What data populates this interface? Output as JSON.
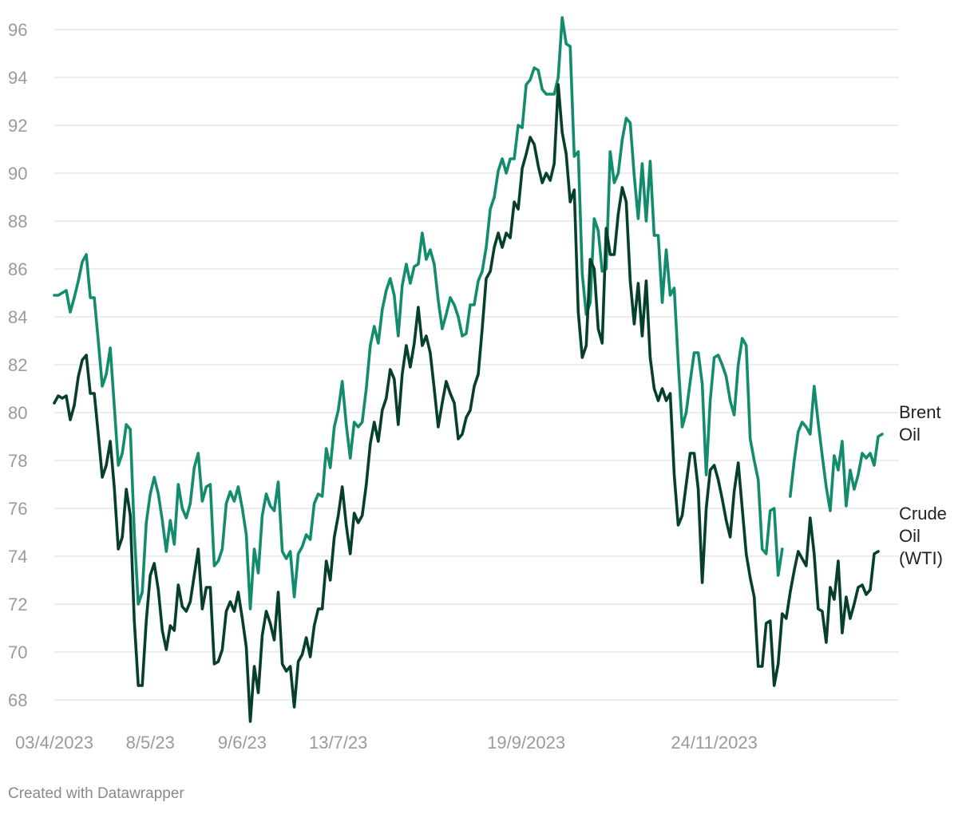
{
  "chart_data": {
    "type": "line",
    "ylim": [
      67,
      96.5
    ],
    "y_ticks": [
      "96",
      "94",
      "92",
      "90",
      "88",
      "86",
      "84",
      "82",
      "80",
      "78",
      "76",
      "74",
      "72",
      "70",
      "68"
    ],
    "x_ticks": [
      {
        "label": "03/4/2023",
        "index": 0
      },
      {
        "label": "8/5/23",
        "index": 24
      },
      {
        "label": "9/6/23",
        "index": 47
      },
      {
        "label": "13/7/23",
        "index": 71
      },
      {
        "label": "19/9/2023",
        "index": 118
      },
      {
        "label": "24/11/2023",
        "index": 165
      }
    ],
    "grid": true,
    "series": [
      {
        "name": "Brent Oil",
        "label_lines": [
          "Brent",
          "Oil"
        ],
        "color": "#138c6e",
        "values": [
          84.9,
          84.9,
          85.0,
          85.1,
          84.2,
          84.8,
          85.5,
          86.3,
          86.6,
          84.8,
          84.8,
          83.0,
          81.1,
          81.6,
          82.7,
          80.3,
          77.8,
          78.3,
          79.5,
          79.3,
          75.0,
          72.0,
          72.5,
          75.4,
          76.6,
          77.3,
          76.6,
          75.5,
          74.2,
          75.5,
          74.5,
          77.0,
          76.0,
          75.6,
          76.2,
          77.7,
          78.3,
          76.3,
          76.9,
          77.0,
          73.6,
          73.8,
          74.3,
          76.2,
          76.7,
          76.3,
          76.9,
          76.0,
          74.9,
          71.8,
          74.3,
          73.3,
          75.7,
          76.6,
          76.1,
          75.9,
          77.1,
          74.2,
          73.9,
          74.2,
          72.3,
          74.1,
          74.4,
          74.9,
          74.7,
          76.2,
          76.6,
          76.5,
          78.5,
          77.7,
          79.4,
          80.1,
          81.3,
          79.5,
          78.1,
          79.6,
          79.4,
          79.6,
          81.0,
          82.8,
          83.6,
          82.9,
          84.3,
          85.1,
          85.6,
          84.9,
          83.2,
          85.3,
          86.2,
          85.4,
          86.1,
          86.2,
          87.5,
          86.4,
          86.8,
          86.2,
          84.7,
          83.5,
          84.1,
          84.8,
          84.5,
          84.0,
          83.2,
          83.3,
          84.5,
          84.5,
          85.5,
          85.9,
          86.9,
          88.5,
          89.0,
          90.1,
          90.6,
          90.0,
          90.6,
          90.6,
          92.0,
          91.9,
          93.7,
          93.9,
          94.4,
          94.3,
          93.5,
          93.3,
          93.3,
          93.3,
          94.0,
          96.5,
          95.4,
          95.3,
          90.7,
          90.9,
          85.8,
          84.1,
          84.6,
          88.1,
          87.6,
          85.9,
          86.0,
          90.9,
          89.6,
          90.0,
          91.4,
          92.3,
          92.1,
          89.9,
          88.1,
          90.4,
          88.0,
          90.5,
          87.4,
          87.4,
          84.6,
          86.8,
          84.9,
          85.2,
          82.1,
          79.4,
          80.0,
          81.3,
          82.5,
          82.5,
          81.2,
          77.4,
          80.5,
          82.3,
          82.4,
          82.0,
          81.5,
          80.5,
          79.9,
          82.0,
          83.1,
          82.8,
          78.9,
          78.0,
          77.2,
          74.3,
          74.1,
          75.9,
          76.0,
          73.2,
          74.3,
          null,
          76.5,
          78.0,
          79.2,
          79.6,
          79.4,
          79.1,
          81.1,
          79.6,
          78.2,
          76.9,
          75.9,
          78.2,
          77.6,
          78.8,
          76.1,
          77.6,
          76.8,
          77.4,
          78.3,
          78.1,
          78.3,
          77.8,
          79.0,
          79.1
        ]
      },
      {
        "name": "Crude Oil (WTI)",
        "label_lines": [
          "Crude",
          "Oil",
          "(WTI)"
        ],
        "color": "#063f2a",
        "values": [
          80.4,
          80.7,
          80.6,
          80.7,
          79.7,
          80.3,
          81.5,
          82.2,
          82.4,
          80.8,
          80.8,
          79.1,
          77.3,
          77.8,
          78.8,
          76.9,
          74.3,
          74.8,
          76.8,
          75.7,
          71.3,
          68.6,
          68.6,
          71.3,
          73.2,
          73.7,
          72.6,
          70.9,
          70.1,
          71.1,
          70.9,
          72.8,
          71.9,
          71.7,
          72.1,
          73.2,
          74.3,
          71.8,
          72.7,
          72.7,
          69.5,
          69.6,
          70.1,
          71.7,
          72.1,
          71.7,
          72.5,
          71.4,
          70.2,
          67.1,
          69.4,
          68.3,
          70.7,
          71.7,
          71.2,
          70.5,
          72.5,
          69.5,
          69.2,
          69.4,
          67.7,
          69.6,
          69.9,
          70.6,
          69.8,
          71.1,
          71.8,
          71.8,
          73.8,
          73.0,
          74.8,
          75.7,
          76.9,
          75.3,
          74.1,
          75.8,
          75.4,
          75.7,
          77.0,
          78.7,
          79.6,
          78.8,
          80.1,
          80.6,
          81.8,
          81.4,
          79.5,
          81.6,
          82.8,
          81.9,
          82.9,
          84.4,
          82.8,
          83.2,
          82.5,
          81.0,
          79.4,
          80.4,
          81.3,
          80.8,
          80.4,
          78.9,
          79.1,
          79.8,
          80.1,
          81.1,
          81.6,
          83.5,
          85.6,
          85.9,
          86.9,
          87.5,
          86.9,
          87.5,
          87.3,
          88.8,
          88.5,
          90.2,
          90.8,
          91.5,
          91.2,
          90.3,
          89.6,
          90.0,
          89.7,
          90.4,
          93.7,
          91.7,
          90.8,
          88.8,
          89.3,
          84.2,
          82.3,
          82.8,
          86.4,
          86.0,
          83.5,
          82.9,
          87.7,
          86.6,
          86.6,
          88.3,
          89.4,
          88.8,
          85.5,
          83.7,
          85.4,
          83.2,
          85.5,
          82.3,
          81.0,
          80.5,
          81.0,
          80.5,
          80.8,
          77.4,
          75.3,
          75.7,
          77.0,
          78.3,
          78.3,
          76.8,
          72.9,
          76.0,
          77.6,
          77.8,
          77.2,
          76.4,
          75.5,
          74.8,
          76.7,
          77.9,
          76.0,
          74.1,
          73.1,
          72.3,
          69.4,
          69.4,
          71.2,
          71.3,
          68.6,
          69.5,
          71.6,
          71.4,
          72.5,
          73.4,
          74.2,
          73.9,
          73.6,
          75.6,
          74.1,
          71.8,
          71.7,
          70.4,
          72.7,
          72.2,
          73.8,
          70.8,
          72.3,
          71.4,
          72.0,
          72.7,
          72.8,
          72.4,
          72.6,
          74.1,
          74.2
        ]
      }
    ]
  },
  "footer": {
    "credit": "Created with Datawrapper"
  }
}
